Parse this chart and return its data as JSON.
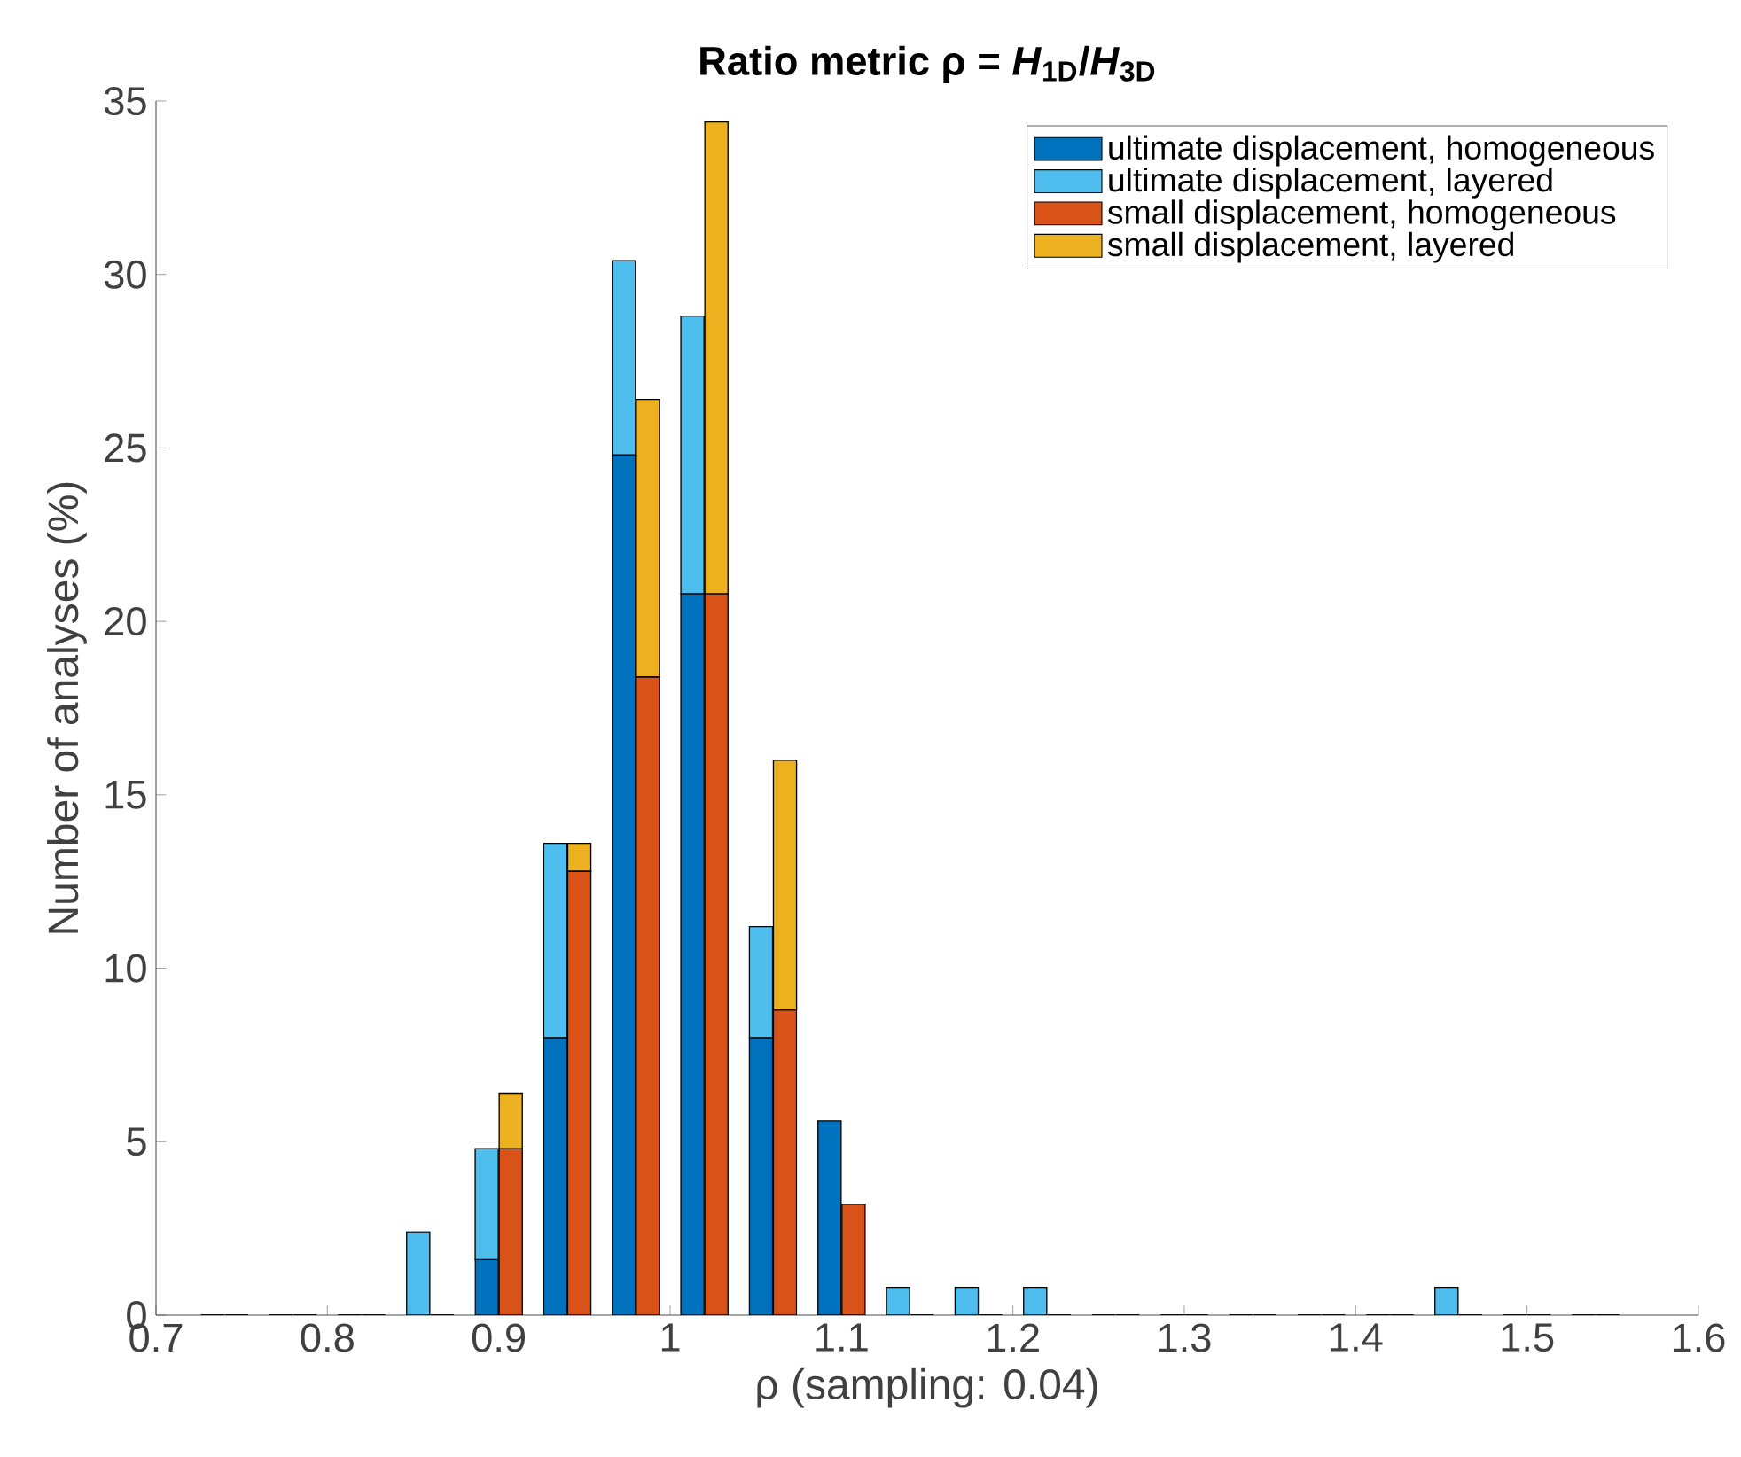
{
  "chart_data": {
    "type": "bar",
    "title": "Ratio metric ρ = *H*$_{1D}$/*H*$_{3D}$",
    "xlabel": "ρ (sampling: 0.04)",
    "ylabel": "Number of analyses (%)",
    "xlim": [
      0.7,
      1.6
    ],
    "xticks": [
      0.7,
      0.8,
      0.9,
      1,
      1.1,
      1.2,
      1.3,
      1.4,
      1.5,
      1.6
    ],
    "ylim": [
      0,
      35
    ],
    "yticks": [
      0,
      5,
      10,
      15,
      20,
      25,
      30,
      35
    ],
    "legend": "top right",
    "series": [
      {
        "name": "ultimate displacement, homogeneous",
        "color": "#0072bd",
        "x": [
          0.733,
          0.773,
          0.813,
          0.853,
          0.893,
          0.933,
          0.973,
          1.013,
          1.053,
          1.093,
          1.133,
          1.173,
          1.213,
          1.253,
          1.293,
          1.333,
          1.373,
          1.413,
          1.453,
          1.493,
          1.533
        ],
        "values": [
          0,
          0,
          0,
          0,
          1.6,
          8,
          24.8,
          20.8,
          8,
          5.6,
          0,
          0,
          0,
          0,
          0,
          0,
          0,
          0,
          0,
          0,
          0
        ]
      },
      {
        "name": "ultimate displacement, layered",
        "color": "#4dbeee",
        "x": [
          0.733,
          0.773,
          0.813,
          0.853,
          0.893,
          0.933,
          0.973,
          1.013,
          1.053,
          1.093,
          1.133,
          1.173,
          1.213,
          1.253,
          1.293,
          1.333,
          1.373,
          1.413,
          1.453,
          1.493,
          1.533
        ],
        "base": [
          null,
          null,
          null,
          0,
          1.6,
          8,
          24.8,
          20.8,
          8,
          null,
          0,
          0,
          0,
          null,
          null,
          null,
          null,
          null,
          0,
          null,
          null
        ],
        "values": [
          0,
          0,
          0,
          2.4,
          3.2,
          5.6,
          5.6,
          8,
          3.2,
          0,
          0.8,
          0.8,
          0.8,
          0,
          0,
          0,
          0,
          0,
          0.8,
          0,
          0
        ]
      },
      {
        "name": "small displacement, homogeneous",
        "color": "#d95319",
        "x": [
          0.747,
          0.787,
          0.827,
          0.867,
          0.907,
          0.947,
          0.987,
          1.027,
          1.067,
          1.107,
          1.147,
          1.187,
          1.227,
          1.267,
          1.307,
          1.347,
          1.387,
          1.427,
          1.467,
          1.507,
          1.547
        ],
        "values": [
          0,
          0,
          0,
          0,
          4.8,
          12.8,
          18.4,
          20.8,
          8.8,
          3.2,
          0,
          0,
          0,
          0,
          0,
          0,
          0,
          0,
          0,
          0,
          0
        ]
      },
      {
        "name": "small displacement, layered",
        "color": "#edb120",
        "x": [
          0.747,
          0.787,
          0.827,
          0.867,
          0.907,
          0.947,
          0.987,
          1.027,
          1.067,
          1.107,
          1.147,
          1.187,
          1.227,
          1.267,
          1.307,
          1.347,
          1.387,
          1.427,
          1.467,
          1.507,
          1.547
        ],
        "base": [
          null,
          null,
          null,
          null,
          4.8,
          12.8,
          18.4,
          20.8,
          8.8,
          null,
          null,
          null,
          null,
          null,
          null,
          null,
          null,
          null,
          null,
          null,
          null
        ],
        "values": [
          0,
          0,
          0,
          0,
          1.6,
          0.8,
          8,
          13.6,
          7.2,
          0,
          0,
          0,
          0,
          0,
          0,
          0,
          0,
          0,
          0,
          0,
          0
        ]
      }
    ]
  }
}
